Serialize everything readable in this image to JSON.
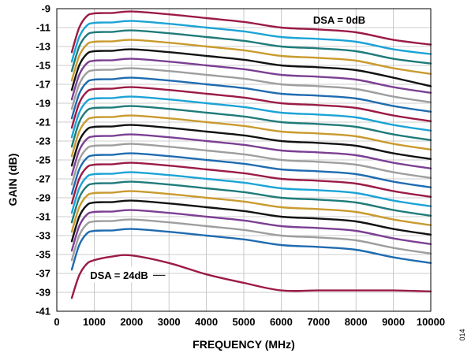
{
  "chart_data": {
    "type": "line",
    "title": "",
    "xlabel": "FREQUENCY (MHz)",
    "ylabel": "GAIN (dB)",
    "xlim": [
      0,
      10000
    ],
    "ylim": [
      -41,
      -9
    ],
    "x_ticks": [
      "0",
      "1000",
      "2000",
      "3000",
      "4000",
      "5000",
      "6000",
      "7000",
      "8000",
      "9000",
      "10000"
    ],
    "y_ticks": [
      "-9",
      "-11",
      "-13",
      "-15",
      "-17",
      "-19",
      "-21",
      "-23",
      "-25",
      "-27",
      "-29",
      "-31",
      "-33",
      "-35",
      "-37",
      "-39",
      "-41"
    ],
    "grid": true,
    "legend": "none",
    "annotations": [
      {
        "text": "DSA = 0dB",
        "attached_to": "top series"
      },
      {
        "text": "DSA = 24dB",
        "attached_to": "bottom series"
      }
    ],
    "figure_id": "014",
    "color_cycle": [
      "#9b1b45",
      "#1ba3d6",
      "#1f7b7a",
      "#c99a2e",
      "#111111",
      "#7b3f93",
      "#9e9e9e",
      "#1f6bb0"
    ],
    "x": [
      400,
      600,
      800,
      1000,
      1500,
      2000,
      3000,
      4000,
      5000,
      6000,
      7000,
      8000,
      9000,
      10000
    ],
    "series": [
      {
        "dsa_db": 0,
        "values": [
          -13.6,
          -11.0,
          -9.8,
          -9.5,
          -9.45,
          -9.3,
          -9.6,
          -10.0,
          -10.4,
          -11.0,
          -11.2,
          -11.5,
          -12.3,
          -12.8
        ]
      },
      {
        "dsa_db": 1,
        "values": [
          -14.6,
          -12.0,
          -10.8,
          -10.5,
          -10.45,
          -10.3,
          -10.6,
          -11.0,
          -11.4,
          -12.0,
          -12.2,
          -12.5,
          -13.3,
          -13.8
        ]
      },
      {
        "dsa_db": 2,
        "values": [
          -15.6,
          -13.0,
          -11.8,
          -11.5,
          -11.45,
          -11.3,
          -11.6,
          -12.0,
          -12.4,
          -13.0,
          -13.2,
          -13.5,
          -14.3,
          -14.8
        ]
      },
      {
        "dsa_db": 3,
        "values": [
          -16.6,
          -14.0,
          -12.8,
          -12.5,
          -12.45,
          -12.3,
          -12.6,
          -13.0,
          -13.4,
          -14.0,
          -14.2,
          -14.5,
          -15.3,
          -15.9
        ]
      },
      {
        "dsa_db": 4,
        "values": [
          -17.6,
          -15.0,
          -13.8,
          -13.5,
          -13.45,
          -13.3,
          -13.6,
          -14.0,
          -14.4,
          -15.0,
          -15.2,
          -15.5,
          -16.3,
          -17.2
        ]
      },
      {
        "dsa_db": 5,
        "values": [
          -18.6,
          -16.0,
          -14.8,
          -14.5,
          -14.45,
          -14.3,
          -14.6,
          -15.0,
          -15.4,
          -16.0,
          -16.2,
          -16.5,
          -17.3,
          -17.9
        ]
      },
      {
        "dsa_db": 6,
        "values": [
          -19.6,
          -17.0,
          -15.8,
          -15.5,
          -15.45,
          -15.3,
          -15.6,
          -16.0,
          -16.4,
          -17.0,
          -17.2,
          -17.5,
          -18.3,
          -18.9
        ]
      },
      {
        "dsa_db": 7,
        "values": [
          -20.6,
          -18.0,
          -16.8,
          -16.5,
          -16.45,
          -16.3,
          -16.6,
          -17.0,
          -17.4,
          -18.0,
          -18.2,
          -18.5,
          -19.3,
          -19.9
        ]
      },
      {
        "dsa_db": 8,
        "values": [
          -21.6,
          -19.0,
          -17.8,
          -17.5,
          -17.45,
          -17.3,
          -17.6,
          -18.0,
          -18.4,
          -19.0,
          -19.2,
          -19.5,
          -20.3,
          -20.9
        ]
      },
      {
        "dsa_db": 9,
        "values": [
          -22.6,
          -20.0,
          -18.8,
          -18.5,
          -18.45,
          -18.3,
          -18.6,
          -19.0,
          -19.4,
          -20.0,
          -20.2,
          -20.5,
          -21.3,
          -21.9
        ]
      },
      {
        "dsa_db": 10,
        "values": [
          -23.6,
          -21.0,
          -19.8,
          -19.5,
          -19.45,
          -19.3,
          -19.6,
          -20.0,
          -20.4,
          -21.0,
          -21.2,
          -21.5,
          -22.3,
          -22.9
        ]
      },
      {
        "dsa_db": 11,
        "values": [
          -24.6,
          -22.0,
          -20.8,
          -20.5,
          -20.45,
          -20.3,
          -20.6,
          -21.0,
          -21.4,
          -22.0,
          -22.2,
          -22.5,
          -23.3,
          -23.9
        ]
      },
      {
        "dsa_db": 12,
        "values": [
          -25.6,
          -23.0,
          -21.8,
          -21.5,
          -21.45,
          -21.3,
          -21.6,
          -22.0,
          -22.4,
          -23.0,
          -23.2,
          -23.5,
          -24.3,
          -24.9
        ]
      },
      {
        "dsa_db": 13,
        "values": [
          -26.6,
          -24.0,
          -22.8,
          -22.5,
          -22.45,
          -22.3,
          -22.6,
          -23.0,
          -23.4,
          -24.0,
          -24.2,
          -24.5,
          -25.3,
          -25.9
        ]
      },
      {
        "dsa_db": 14,
        "values": [
          -27.6,
          -25.0,
          -23.8,
          -23.5,
          -23.45,
          -23.3,
          -23.6,
          -24.0,
          -24.4,
          -25.0,
          -25.2,
          -25.5,
          -26.3,
          -26.9
        ]
      },
      {
        "dsa_db": 15,
        "values": [
          -28.6,
          -26.0,
          -24.8,
          -24.5,
          -24.45,
          -24.3,
          -24.6,
          -25.0,
          -25.4,
          -26.0,
          -26.2,
          -26.5,
          -27.3,
          -27.9
        ]
      },
      {
        "dsa_db": 16,
        "values": [
          -29.6,
          -27.0,
          -25.8,
          -25.5,
          -25.45,
          -25.3,
          -25.6,
          -26.0,
          -26.4,
          -27.0,
          -27.2,
          -27.5,
          -28.3,
          -28.9
        ]
      },
      {
        "dsa_db": 17,
        "values": [
          -30.6,
          -28.0,
          -26.8,
          -26.5,
          -26.45,
          -26.3,
          -26.6,
          -27.0,
          -27.4,
          -28.0,
          -28.2,
          -28.5,
          -29.3,
          -29.9
        ]
      },
      {
        "dsa_db": 18,
        "values": [
          -31.6,
          -29.0,
          -27.8,
          -27.5,
          -27.45,
          -27.3,
          -27.6,
          -28.0,
          -28.4,
          -29.0,
          -29.2,
          -29.5,
          -30.3,
          -30.9
        ]
      },
      {
        "dsa_db": 19,
        "values": [
          -32.6,
          -30.0,
          -28.8,
          -28.5,
          -28.45,
          -28.3,
          -28.6,
          -29.0,
          -29.4,
          -30.0,
          -30.2,
          -30.5,
          -31.3,
          -31.9
        ]
      },
      {
        "dsa_db": 20,
        "values": [
          -33.6,
          -31.0,
          -29.8,
          -29.5,
          -29.45,
          -29.3,
          -29.6,
          -30.0,
          -30.4,
          -31.0,
          -31.2,
          -31.5,
          -32.3,
          -32.9
        ]
      },
      {
        "dsa_db": 21,
        "values": [
          -34.6,
          -32.0,
          -30.8,
          -30.5,
          -30.45,
          -30.3,
          -30.6,
          -31.0,
          -31.4,
          -32.0,
          -32.2,
          -32.5,
          -33.3,
          -33.9
        ]
      },
      {
        "dsa_db": 22,
        "values": [
          -35.6,
          -33.0,
          -31.8,
          -31.5,
          -31.45,
          -31.3,
          -31.6,
          -32.0,
          -32.4,
          -33.0,
          -33.2,
          -33.5,
          -34.3,
          -34.9
        ]
      },
      {
        "dsa_db": 23,
        "values": [
          -36.6,
          -34.0,
          -32.8,
          -32.5,
          -32.45,
          -32.3,
          -32.6,
          -33.0,
          -33.4,
          -34.0,
          -34.2,
          -34.5,
          -35.3,
          -35.9
        ]
      },
      {
        "dsa_db": 24,
        "values": [
          -39.6,
          -37.2,
          -36.0,
          -35.6,
          -35.2,
          -35.1,
          -35.9,
          -37.1,
          -38.0,
          -38.8,
          -38.8,
          -38.8,
          -38.8,
          -38.9
        ]
      }
    ]
  }
}
